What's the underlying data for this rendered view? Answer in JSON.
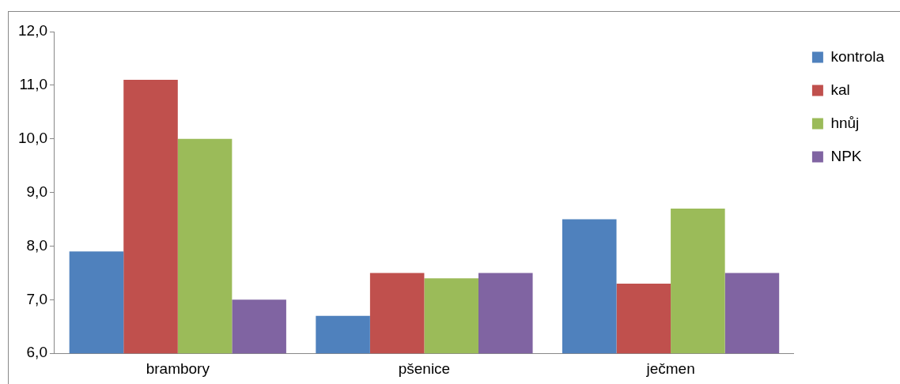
{
  "chart_data": {
    "type": "bar",
    "categories": [
      "brambory",
      "pšenice",
      "ječmen"
    ],
    "series": [
      {
        "name": "kontrola",
        "color": "#4f81bd",
        "values": [
          7.9,
          6.7,
          8.5
        ]
      },
      {
        "name": "kal",
        "color": "#c0504d",
        "values": [
          11.1,
          7.5,
          7.3
        ]
      },
      {
        "name": "hnůj",
        "color": "#9bbb59",
        "values": [
          10.0,
          7.4,
          8.7
        ]
      },
      {
        "name": "NPK",
        "color": "#8064a2",
        "values": [
          7.0,
          7.5,
          7.5
        ]
      }
    ],
    "ylim": [
      6,
      12
    ],
    "yticks": [
      {
        "value": 6,
        "label": "6,0"
      },
      {
        "value": 7,
        "label": "7,0"
      },
      {
        "value": 8,
        "label": "8,0"
      },
      {
        "value": 9,
        "label": "9,0"
      },
      {
        "value": 10,
        "label": "10,0"
      },
      {
        "value": 11,
        "label": "11,0"
      },
      {
        "value": 12,
        "label": "12,0"
      }
    ],
    "grid": false,
    "legend": "top right"
  }
}
